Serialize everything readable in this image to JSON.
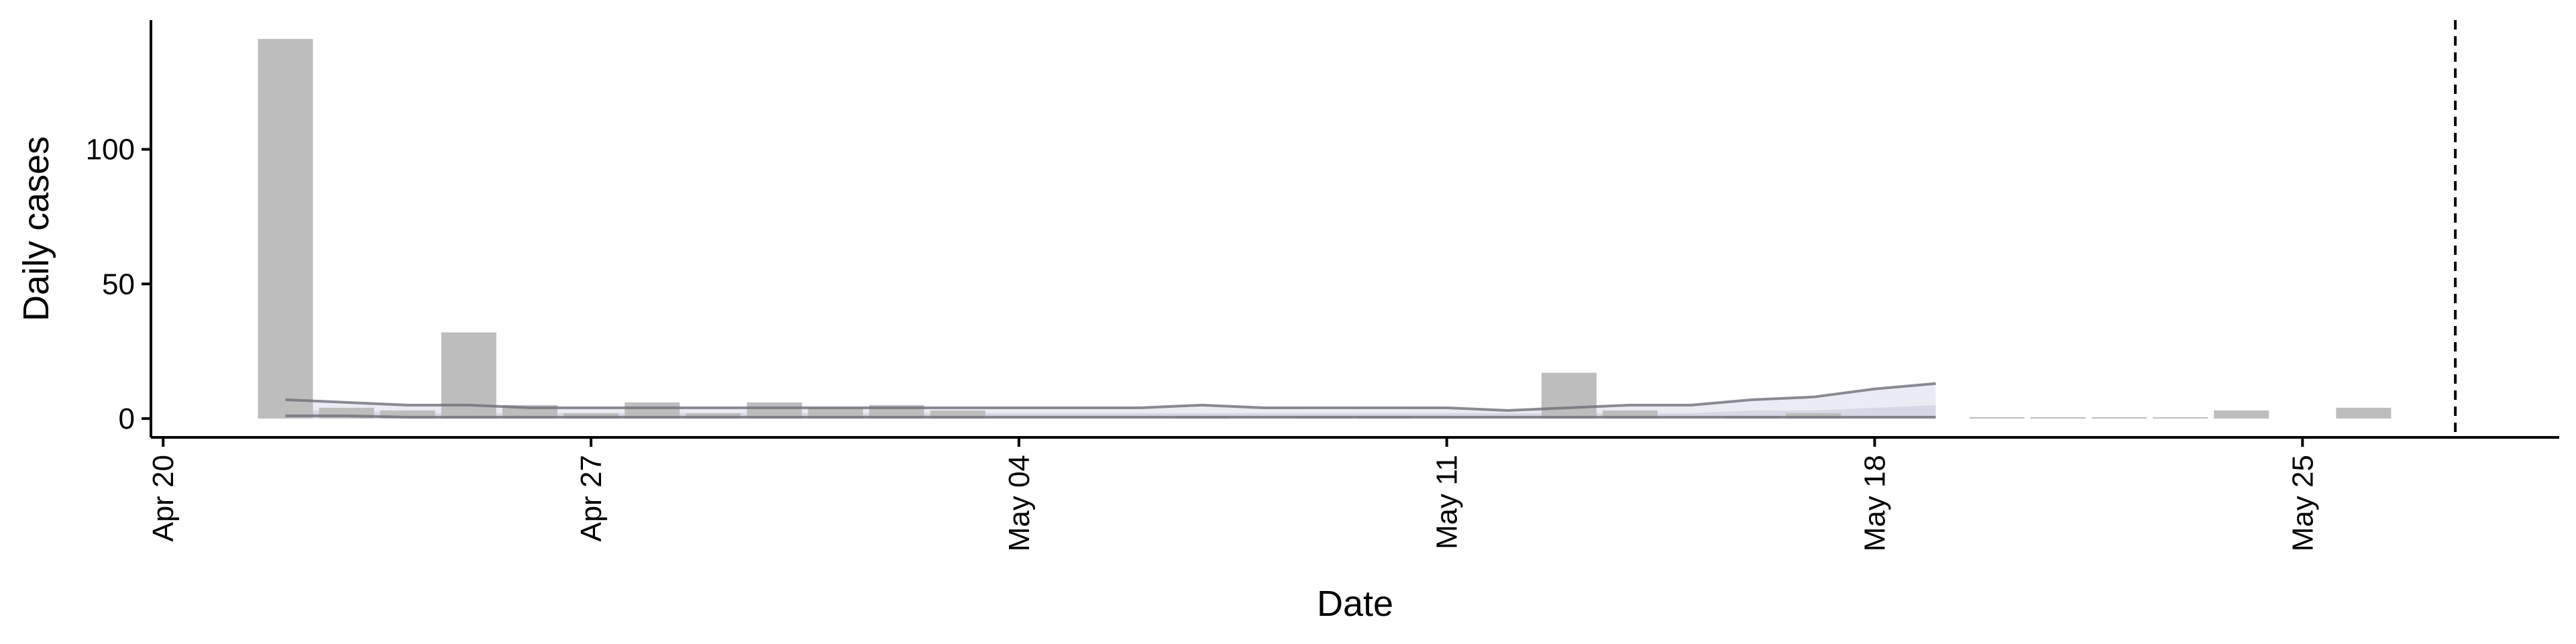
{
  "chart_data": {
    "type": "bar",
    "xlabel": "Date",
    "ylabel": "Daily cases",
    "x_ticks": [
      {
        "day": 0,
        "label": "Apr 20"
      },
      {
        "day": 7,
        "label": "Apr 27"
      },
      {
        "day": 14,
        "label": "May 04"
      },
      {
        "day": 21,
        "label": "May 11"
      },
      {
        "day": 28,
        "label": "May 18"
      },
      {
        "day": 35,
        "label": "May 25"
      }
    ],
    "y_ticks": [
      0,
      50,
      100
    ],
    "xlim": [
      -0.2,
      39.2
    ],
    "ylim": [
      -7,
      148
    ],
    "vline_day": 37.5,
    "bars": [
      {
        "day": 2,
        "value": 141
      },
      {
        "day": 3,
        "value": 4
      },
      {
        "day": 4,
        "value": 3
      },
      {
        "day": 5,
        "value": 32
      },
      {
        "day": 6,
        "value": 5
      },
      {
        "day": 7,
        "value": 2
      },
      {
        "day": 8,
        "value": 6
      },
      {
        "day": 9,
        "value": 2
      },
      {
        "day": 10,
        "value": 6
      },
      {
        "day": 11,
        "value": 4
      },
      {
        "day": 12,
        "value": 5
      },
      {
        "day": 13,
        "value": 3
      },
      {
        "day": 17,
        "value": 1
      },
      {
        "day": 19,
        "value": 1
      },
      {
        "day": 20,
        "value": 1
      },
      {
        "day": 23,
        "value": 17
      },
      {
        "day": 24,
        "value": 3
      },
      {
        "day": 26,
        "value": 1
      },
      {
        "day": 27,
        "value": 2
      },
      {
        "day": 30,
        "value": 0.4
      },
      {
        "day": 31,
        "value": 0.4
      },
      {
        "day": 32,
        "value": 0.4
      },
      {
        "day": 33,
        "value": 0.4
      },
      {
        "day": 34,
        "value": 3
      },
      {
        "day": 36,
        "value": 4
      }
    ],
    "estimate": {
      "days": [
        2,
        3,
        4,
        5,
        6,
        7,
        8,
        9,
        10,
        11,
        12,
        13,
        14,
        15,
        16,
        17,
        18,
        19,
        20,
        21,
        22,
        23,
        24,
        25,
        26,
        27,
        28,
        29
      ],
      "median": [
        1,
        1,
        0.5,
        0.5,
        0.5,
        0.5,
        0.5,
        0.5,
        0.5,
        0.5,
        0.5,
        0.5,
        0.5,
        0.5,
        0.5,
        0.5,
        0.5,
        0.5,
        0.5,
        0.5,
        0.5,
        0.5,
        0.5,
        0.5,
        0.5,
        0.5,
        0.5,
        0.5
      ],
      "lower": [
        0,
        0,
        0,
        0,
        0,
        0,
        0,
        0,
        0,
        0,
        0,
        0,
        0,
        0,
        0,
        0,
        0,
        0,
        0,
        0,
        0,
        0,
        0,
        0,
        0,
        0,
        0,
        0
      ],
      "upper": [
        7,
        6,
        5,
        5,
        4,
        4,
        4,
        4,
        4,
        4,
        4,
        4,
        4,
        4,
        4,
        5,
        4,
        4,
        4,
        4,
        3,
        4,
        5,
        5,
        7,
        8,
        11,
        13
      ],
      "inner_upper": [
        3,
        3,
        2,
        2,
        2,
        2,
        2,
        2,
        2,
        2,
        2,
        2,
        2,
        2,
        2,
        2,
        2,
        2,
        2,
        2,
        2,
        2,
        2,
        2,
        3,
        3,
        4,
        5
      ]
    },
    "colors": {
      "bar": "#bdbdbd",
      "ribbon": "#bcc0d6",
      "line": "#6e6e78",
      "axis": "#000000"
    }
  }
}
